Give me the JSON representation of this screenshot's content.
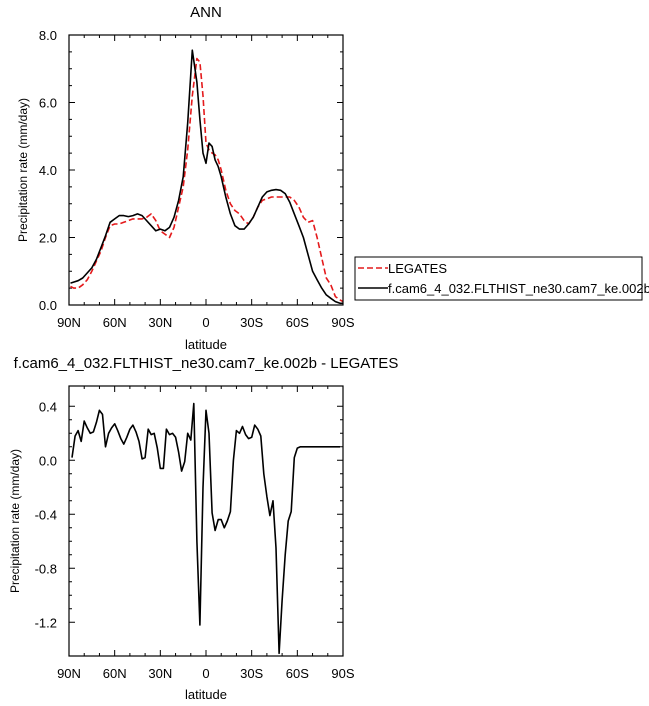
{
  "chart_data": [
    {
      "type": "line",
      "title": "ANN",
      "xlabel": "latitude",
      "ylabel": "Precipitation rate (mm/day)",
      "xlim": [
        -90,
        90
      ],
      "ylim": [
        0,
        8
      ],
      "x_ticks": [
        -90,
        -60,
        -30,
        0,
        30,
        60,
        90
      ],
      "x_tick_labels": [
        "90N",
        "60N",
        "30N",
        "0",
        "30S",
        "60S",
        "90S"
      ],
      "y_ticks": [
        0,
        2,
        4,
        6,
        8
      ],
      "y_tick_labels": [
        "0.0",
        "2.0",
        "4.0",
        "6.0",
        "8.0"
      ],
      "legend": "right",
      "series": [
        {
          "name": "LEGATES",
          "color": "#e41a1c",
          "style": "dashed",
          "x": [
            -89,
            -87,
            -84,
            -81,
            -78,
            -75,
            -72,
            -69,
            -66,
            -63,
            -60,
            -57,
            -54,
            -51,
            -48,
            -45,
            -42,
            -39,
            -36,
            -33,
            -30,
            -27,
            -24,
            -21,
            -18,
            -15,
            -12,
            -9,
            -6,
            -4,
            -2,
            0,
            2,
            4,
            6,
            8,
            10,
            13,
            16,
            19,
            22,
            25,
            28,
            31,
            34,
            37,
            40,
            43,
            46,
            49,
            52,
            55,
            58,
            61,
            64,
            67,
            70,
            73,
            76,
            79,
            82,
            85,
            88,
            90
          ],
          "y": [
            0.55,
            0.5,
            0.5,
            0.6,
            0.75,
            1.0,
            1.3,
            1.6,
            2.0,
            2.35,
            2.4,
            2.4,
            2.45,
            2.5,
            2.55,
            2.55,
            2.55,
            2.6,
            2.7,
            2.5,
            2.2,
            2.1,
            2.0,
            2.3,
            2.9,
            3.5,
            4.6,
            6.2,
            7.3,
            7.2,
            6.2,
            4.8,
            4.6,
            4.5,
            4.45,
            4.3,
            4.0,
            3.4,
            3.0,
            2.8,
            2.7,
            2.5,
            2.4,
            2.6,
            2.9,
            3.1,
            3.15,
            3.2,
            3.2,
            3.2,
            3.2,
            3.2,
            3.1,
            2.9,
            2.6,
            2.45,
            2.5,
            2.0,
            1.4,
            0.8,
            0.6,
            0.25,
            0.15,
            0.1
          ]
        },
        {
          "name": "f.cam6_4_032.FLTHIST_ne30.cam7_ke.002b",
          "color": "#000000",
          "style": "solid",
          "x": [
            -89,
            -87,
            -84,
            -81,
            -78,
            -75,
            -72,
            -69,
            -66,
            -63,
            -60,
            -57,
            -54,
            -51,
            -48,
            -45,
            -42,
            -39,
            -36,
            -33,
            -30,
            -27,
            -24,
            -21,
            -18,
            -15,
            -12,
            -9,
            -6,
            -4,
            -2,
            0,
            2,
            4,
            6,
            8,
            10,
            13,
            16,
            19,
            22,
            25,
            28,
            31,
            34,
            37,
            40,
            43,
            46,
            49,
            52,
            55,
            58,
            61,
            64,
            67,
            70,
            73,
            76,
            79,
            82,
            85,
            88,
            90
          ],
          "y": [
            0.65,
            0.68,
            0.72,
            0.8,
            0.95,
            1.1,
            1.35,
            1.7,
            2.05,
            2.45,
            2.55,
            2.65,
            2.65,
            2.62,
            2.65,
            2.7,
            2.65,
            2.5,
            2.35,
            2.2,
            2.25,
            2.2,
            2.3,
            2.6,
            3.1,
            3.8,
            5.4,
            7.55,
            6.6,
            5.5,
            4.5,
            4.2,
            4.8,
            4.7,
            4.3,
            4.1,
            3.8,
            3.2,
            2.7,
            2.35,
            2.25,
            2.25,
            2.4,
            2.6,
            2.9,
            3.2,
            3.35,
            3.4,
            3.42,
            3.4,
            3.3,
            3.05,
            2.7,
            2.35,
            2.0,
            1.5,
            1.0,
            0.75,
            0.5,
            0.3,
            0.2,
            0.1,
            0.05,
            0.05
          ]
        }
      ]
    },
    {
      "type": "line",
      "title": "f.cam6_4_032.FLTHIST_ne30.cam7_ke.002b - LEGATES",
      "xlabel": "latitude",
      "ylabel": "Precipitation rate (mm/day)",
      "xlim": [
        -90,
        90
      ],
      "ylim": [
        -1.45,
        0.55
      ],
      "x_ticks": [
        -90,
        -60,
        -30,
        0,
        30,
        60,
        90
      ],
      "x_tick_labels": [
        "90N",
        "60N",
        "30N",
        "0",
        "30S",
        "60S",
        "90S"
      ],
      "y_ticks": [
        -1.2,
        -0.8,
        -0.4,
        0.0,
        0.4
      ],
      "y_tick_labels": [
        "-1.2",
        "-0.8",
        "-0.4",
        "0.0",
        "0.4"
      ],
      "series": [
        {
          "name": "",
          "color": "#000000",
          "style": "solid",
          "x": [
            -88,
            -86,
            -84,
            -82,
            -80,
            -78,
            -76,
            -74,
            -72,
            -70,
            -68,
            -66,
            -64,
            -62,
            -60,
            -58,
            -56,
            -54,
            -52,
            -50,
            -48,
            -46,
            -44,
            -42,
            -40,
            -38,
            -36,
            -34,
            -32,
            -30,
            -28,
            -26,
            -24,
            -22,
            -20,
            -18,
            -16,
            -14,
            -12,
            -10,
            -8,
            -6,
            -4,
            -2,
            0,
            2,
            4,
            6,
            8,
            10,
            12,
            14,
            16,
            18,
            20,
            22,
            24,
            26,
            28,
            30,
            32,
            34,
            36,
            38,
            40,
            42,
            44,
            46,
            48,
            50,
            52,
            54,
            56,
            58,
            60,
            62,
            64,
            66,
            68,
            70,
            72,
            74,
            76,
            78,
            80,
            82,
            84,
            86,
            88
          ],
          "y": [
            0.02,
            0.18,
            0.22,
            0.14,
            0.29,
            0.24,
            0.2,
            0.21,
            0.28,
            0.37,
            0.34,
            0.1,
            0.2,
            0.24,
            0.27,
            0.22,
            0.16,
            0.12,
            0.17,
            0.23,
            0.26,
            0.21,
            0.14,
            0.01,
            0.02,
            0.23,
            0.19,
            0.2,
            0.09,
            -0.06,
            -0.06,
            0.23,
            0.19,
            0.2,
            0.17,
            0.06,
            -0.08,
            -0.01,
            0.2,
            0.15,
            0.42,
            -0.6,
            -1.22,
            -0.2,
            0.37,
            0.2,
            -0.39,
            -0.52,
            -0.44,
            -0.44,
            -0.5,
            -0.45,
            -0.38,
            0.0,
            0.22,
            0.2,
            0.25,
            0.19,
            0.16,
            0.17,
            0.26,
            0.23,
            0.18,
            -0.1,
            -0.27,
            -0.41,
            -0.3,
            -0.65,
            -1.43,
            -1.04,
            -0.7,
            -0.45,
            -0.38,
            0.02,
            0.09,
            0.1,
            0.1,
            0.1,
            0.1,
            0.1,
            0.1,
            0.1,
            0.1,
            0.1,
            0.1,
            0.1,
            0.1,
            0.1,
            0.1
          ]
        }
      ]
    }
  ]
}
